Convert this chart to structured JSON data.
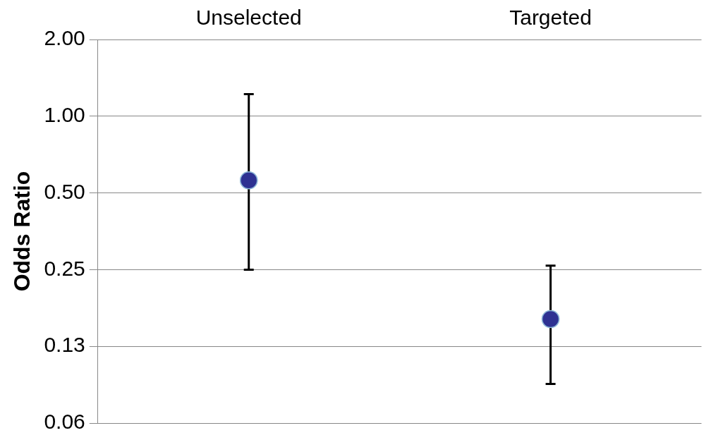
{
  "chart_data": {
    "type": "scatter",
    "ylabel": "Odds Ratio",
    "categories": [
      "Unselected",
      "Targeted"
    ],
    "series": [
      {
        "color": "#2e3192",
        "values": [
          0.56,
          0.16
        ],
        "errors": [
          [
            0.25,
            1.22
          ],
          [
            0.089,
            0.259
          ]
        ]
      }
    ],
    "log": "y",
    "ylim": [
      0.0625,
      2
    ],
    "yticks": [
      {
        "value": 0.0625,
        "label": "0.06"
      },
      {
        "value": 0.125,
        "label": "0.13"
      },
      {
        "value": 0.25,
        "label": "0.25"
      },
      {
        "value": 0.5,
        "label": "0.50"
      },
      {
        "value": 1,
        "label": "1.00"
      },
      {
        "value": 2,
        "label": "2.00"
      }
    ],
    "grid": "y",
    "marker": "circle",
    "legend": false
  }
}
